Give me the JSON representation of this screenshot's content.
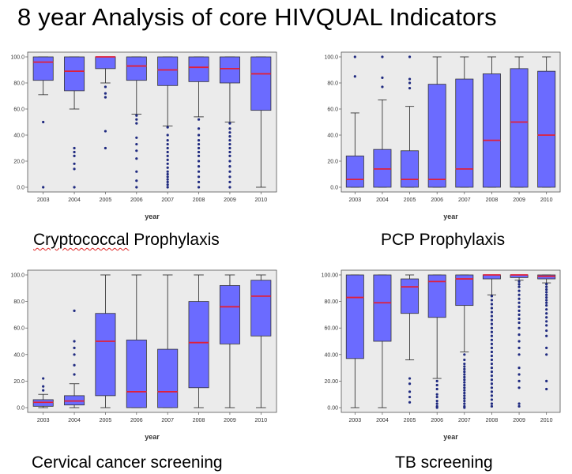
{
  "title": "8 year Analysis  of core HIVQUAL Indicators",
  "colors": {
    "box": "#6b6bff",
    "median": "#e0203a",
    "outlier": "#1f2a80",
    "plot_bg": "#ebebeb",
    "whisker": "#222222"
  },
  "chart_data": [
    {
      "type": "boxplot",
      "title": "Cryptococcal Prophylaxis",
      "title_first_word": "Cryptococcal",
      "title_rest": " Prophylaxis",
      "xlabel": "year",
      "categories": [
        "2003",
        "2004",
        "2005",
        "2006",
        "2007",
        "2008",
        "2009",
        "2010"
      ],
      "ylim": [
        0,
        100
      ],
      "yticks": [
        "0.0",
        "20.0",
        "40.0",
        "60.0",
        "80.0",
        "100.0"
      ],
      "boxes": [
        {
          "min": 71,
          "q1": 82,
          "median": 96,
          "q3": 100,
          "max": 100,
          "outliers": [
            50,
            0
          ]
        },
        {
          "min": 60,
          "q1": 74,
          "median": 89,
          "q3": 100,
          "max": 100,
          "outliers": [
            30,
            27,
            24,
            18,
            14,
            0
          ]
        },
        {
          "min": 80,
          "q1": 91,
          "median": 100,
          "q3": 100,
          "max": 100,
          "outliers": [
            77,
            72,
            69,
            43,
            30
          ]
        },
        {
          "min": 56,
          "q1": 82,
          "median": 93,
          "q3": 100,
          "max": 100,
          "outliers": [
            55,
            52,
            49,
            38,
            33,
            28,
            22,
            12,
            5,
            0
          ]
        },
        {
          "min": 47,
          "q1": 78,
          "median": 90,
          "q3": 100,
          "max": 100,
          "outliers": [
            46,
            40,
            36,
            33,
            30,
            27,
            24,
            21,
            18,
            15,
            12,
            10,
            8,
            6,
            4,
            2,
            0
          ]
        },
        {
          "min": 54,
          "q1": 81,
          "median": 92,
          "q3": 100,
          "max": 100,
          "outliers": [
            52,
            45,
            40,
            36,
            33,
            30,
            27,
            24,
            20,
            16,
            12,
            8,
            4,
            0
          ]
        },
        {
          "min": 50,
          "q1": 80,
          "median": 91,
          "q3": 100,
          "max": 100,
          "outliers": [
            49,
            45,
            42,
            39,
            36,
            33,
            30,
            27,
            24,
            20,
            16,
            12,
            8,
            4,
            0
          ]
        },
        {
          "min": 0,
          "q1": 59,
          "median": 87,
          "q3": 100,
          "max": 100,
          "outliers": []
        }
      ]
    },
    {
      "type": "boxplot",
      "title": "PCP Prophylaxis",
      "xlabel": "year",
      "categories": [
        "2003",
        "2004",
        "2005",
        "2006",
        "2007",
        "2008",
        "2009",
        "2010"
      ],
      "ylim": [
        0,
        100
      ],
      "yticks": [
        "0.0",
        "20.0",
        "40.0",
        "60.0",
        "80.0",
        "100.0"
      ],
      "boxes": [
        {
          "min": 0,
          "q1": 0,
          "median": 6,
          "q3": 24,
          "max": 57,
          "outliers": [
            85,
            100
          ]
        },
        {
          "min": 0,
          "q1": 0,
          "median": 14,
          "q3": 29,
          "max": 67,
          "outliers": [
            77,
            84,
            100
          ]
        },
        {
          "min": 0,
          "q1": 0,
          "median": 6,
          "q3": 28,
          "max": 62,
          "outliers": [
            76,
            80,
            83,
            100
          ]
        },
        {
          "min": 0,
          "q1": 0,
          "median": 6,
          "q3": 79,
          "max": 100,
          "outliers": []
        },
        {
          "min": 0,
          "q1": 0,
          "median": 14,
          "q3": 83,
          "max": 100,
          "outliers": []
        },
        {
          "min": 0,
          "q1": 0,
          "median": 36,
          "q3": 87,
          "max": 100,
          "outliers": []
        },
        {
          "min": 0,
          "q1": 0,
          "median": 50,
          "q3": 91,
          "max": 100,
          "outliers": []
        },
        {
          "min": 0,
          "q1": 0,
          "median": 40,
          "q3": 89,
          "max": 100,
          "outliers": []
        }
      ]
    },
    {
      "type": "boxplot",
      "title": "Cervical cancer screening",
      "xlabel": "year",
      "categories": [
        "2003",
        "2004",
        "2005",
        "2006",
        "2007",
        "2008",
        "2009",
        "2010"
      ],
      "ylim": [
        0,
        100
      ],
      "yticks": [
        "0.0",
        "20.0",
        "40.0",
        "60.0",
        "80.0",
        "100.0"
      ],
      "boxes": [
        {
          "min": 0,
          "q1": 1,
          "median": 4,
          "q3": 6,
          "max": 10,
          "outliers": [
            13,
            16,
            22
          ]
        },
        {
          "min": 0,
          "q1": 2,
          "median": 5,
          "q3": 9,
          "max": 18,
          "outliers": [
            25,
            32,
            40,
            45,
            50,
            73
          ]
        },
        {
          "min": 0,
          "q1": 9,
          "median": 50,
          "q3": 71,
          "max": 100,
          "outliers": []
        },
        {
          "min": 0,
          "q1": 0,
          "median": 12,
          "q3": 51,
          "max": 100,
          "outliers": []
        },
        {
          "min": 0,
          "q1": 0,
          "median": 12,
          "q3": 44,
          "max": 100,
          "outliers": []
        },
        {
          "min": 0,
          "q1": 15,
          "median": 49,
          "q3": 80,
          "max": 100,
          "outliers": []
        },
        {
          "min": 0,
          "q1": 48,
          "median": 76,
          "q3": 92,
          "max": 100,
          "outliers": []
        },
        {
          "min": 0,
          "q1": 54,
          "median": 84,
          "q3": 96,
          "max": 100,
          "outliers": []
        }
      ]
    },
    {
      "type": "boxplot",
      "title": "TB screening",
      "xlabel": "year",
      "categories": [
        "2003",
        "2004",
        "2005",
        "2006",
        "2007",
        "2008",
        "2009",
        "2010"
      ],
      "ylim": [
        0,
        100
      ],
      "yticks": [
        "0.00",
        "20.00",
        "40.00",
        "60.00",
        "80.00",
        "100.00"
      ],
      "boxes": [
        {
          "min": 0,
          "q1": 37,
          "median": 83,
          "q3": 100,
          "max": 100,
          "outliers": []
        },
        {
          "min": 0,
          "q1": 50,
          "median": 79,
          "q3": 100,
          "max": 100,
          "outliers": []
        },
        {
          "min": 36,
          "q1": 71,
          "median": 91,
          "q3": 97,
          "max": 100,
          "outliers": [
            22,
            18,
            12,
            8,
            4
          ]
        },
        {
          "min": 22,
          "q1": 68,
          "median": 95,
          "q3": 100,
          "max": 100,
          "outliers": [
            20,
            17,
            14,
            10,
            8,
            5,
            3,
            1,
            0
          ]
        },
        {
          "min": 42,
          "q1": 77,
          "median": 97,
          "q3": 100,
          "max": 100,
          "outliers": [
            40,
            36,
            33,
            31,
            29,
            27,
            25,
            23,
            21,
            19,
            17,
            15,
            13,
            11,
            9,
            7,
            5,
            3,
            1,
            0
          ]
        },
        {
          "min": 85,
          "q1": 97,
          "median": 100,
          "q3": 100,
          "max": 100,
          "outliers": [
            84,
            81,
            78,
            75,
            72,
            69,
            66,
            63,
            60,
            57,
            54,
            51,
            48,
            45,
            42,
            39,
            36,
            33,
            30,
            27,
            24,
            21,
            18,
            15,
            12,
            9,
            6,
            3,
            1
          ]
        },
        {
          "min": 96,
          "q1": 98,
          "median": 100,
          "q3": 100,
          "max": 100,
          "outliers": [
            95,
            93,
            91,
            88,
            85,
            82,
            79,
            76,
            73,
            70,
            67,
            64,
            60,
            55,
            50,
            45,
            40,
            30,
            25,
            20,
            15,
            3,
            1
          ]
        },
        {
          "min": 94,
          "q1": 97,
          "median": 99,
          "q3": 100,
          "max": 100,
          "outliers": [
            93,
            91,
            89,
            87,
            85,
            83,
            81,
            79,
            77,
            74,
            71,
            68,
            65,
            62,
            58,
            54,
            45,
            40,
            20,
            14
          ]
        }
      ]
    }
  ]
}
